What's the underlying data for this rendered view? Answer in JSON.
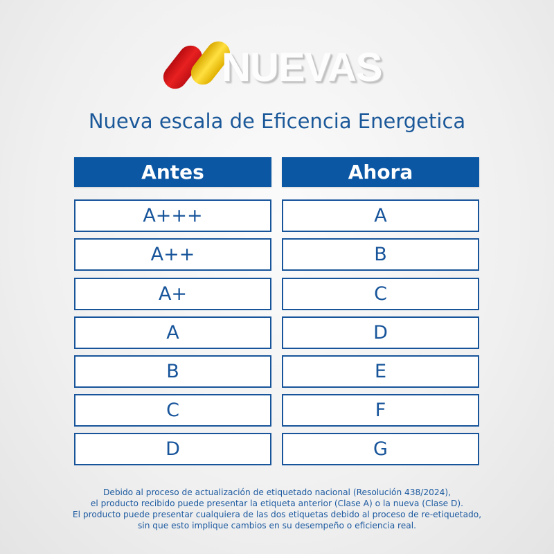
{
  "logo": {
    "text": "NUEVAS",
    "colors": [
      "#e01b1b",
      "#f5c800"
    ]
  },
  "title": "Nueva escala de Eficencia Energetica",
  "table": {
    "headers": [
      "Antes",
      "Ahora"
    ],
    "rows": [
      [
        "A+++",
        "A"
      ],
      [
        "A++",
        "B"
      ],
      [
        "A+",
        "C"
      ],
      [
        "A",
        "D"
      ],
      [
        "B",
        "E"
      ],
      [
        "C",
        "F"
      ],
      [
        "D",
        "G"
      ]
    ]
  },
  "footer": [
    "Debido al proceso de actualización de etiquetado nacional (Resolución 438/2024),",
    "el producto recibido puede presentar la etiqueta anterior (Clase A) o la nueva (Clase D).",
    "El producto puede presentar cualquiera de las dos etiquetas debido al proceso de re-etiquetado,",
    "sin que esto implique cambios en su desempeño o eficiencia real."
  ],
  "colors": {
    "primary": "#0b57a4"
  }
}
